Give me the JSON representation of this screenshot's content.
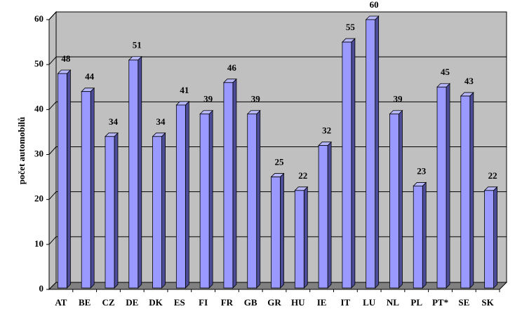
{
  "chart_data": {
    "type": "bar3d",
    "y_label": "počet automobilů",
    "categories": [
      "AT",
      "BE",
      "CZ",
      "DE",
      "DK",
      "ES",
      "FI",
      "FR",
      "GB",
      "GR",
      "HU",
      "IE",
      "IT",
      "LU",
      "NL",
      "PL",
      "PT*",
      "SE",
      "SK"
    ],
    "values": [
      48,
      44,
      34,
      51,
      34,
      41,
      39,
      46,
      39,
      25,
      22,
      32,
      55,
      60,
      39,
      23,
      45,
      43,
      22
    ],
    "color": "#9999ff",
    "ylim": [
      0,
      60
    ],
    "yticks": [
      0,
      10,
      20,
      30,
      40,
      50,
      60
    ],
    "grid": true
  }
}
